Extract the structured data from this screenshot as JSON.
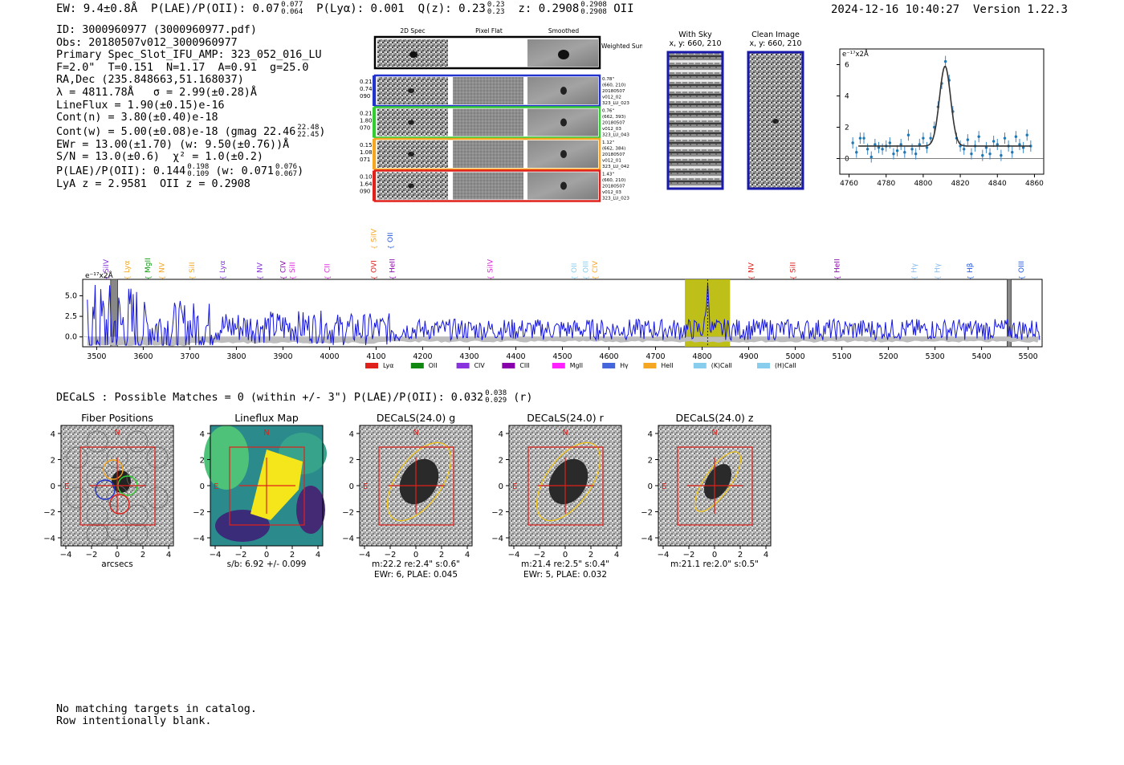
{
  "header": {
    "ew": "EW: 9.4±0.8Å",
    "plae_label": "P(LAE)/P(OII): 0.07",
    "plae_hi": "0.077",
    "plae_lo": "0.064",
    "plya": "P(Lyα): 0.001",
    "qz_label": "Q(z): 0.23",
    "qz_hi": "0.23",
    "qz_lo": "0.23",
    "z_label": "z: 0.2908",
    "z_hi": "0.2908",
    "z_lo": "0.2908",
    "z_line": "OII",
    "datetime": "2024-12-16 10:40:27",
    "version": "Version 1.22.3"
  },
  "info": {
    "id": "ID: 3000960977 (3000960977.pdf)",
    "obs": "Obs: 20180507v012_3000960977",
    "primary": "Primary Spec_Slot_IFU_AMP: 323_052_016_LU",
    "fit": "F=2.0\"  T=0.151  N=1.17  A=0.91  g=25.0",
    "radec": "RA,Dec (235.848663,51.168037)",
    "lambda": "λ = 4811.78Å   σ = 2.99(±0.28)Å",
    "lineflux": "LineFlux = 1.90(±0.15)e-16",
    "contn": "Cont(n) = 3.80(±0.40)e-18",
    "contw": "Cont(w) = 5.00(±0.08)e-18 (gmag 22.46",
    "contw_hi": "22.48",
    "contw_lo": "22.45",
    "ewr": "EWr = 13.00(±1.70) (w: 9.50(±0.76))Å",
    "sn": "S/N = 13.0(±0.6)  χ² = 1.0(±0.2)",
    "plae": "P(LAE)/P(OII): 0.144",
    "plae_hi": "0.198",
    "plae_lo": "0.109",
    "plae_w": "(w: 0.071",
    "plae_w_hi": "0.076",
    "plae_w_lo": "0.067",
    "lyaz": "LyA z = 2.9581  OII z = 0.2908"
  },
  "cutouts": {
    "col_titles": [
      "2D Spec",
      "Pixel Flat",
      "Smoothed"
    ],
    "weighted_label": "Weighted Sum",
    "rows": [
      {
        "left": [
          "0.21",
          "0.74",
          "090"
        ],
        "right": [
          "0.78\"",
          "(660, 210)",
          "20180507",
          "v012_02",
          "323_LU_023"
        ],
        "color": "#2233cc"
      },
      {
        "left": [
          "0.21",
          "1.80",
          "070"
        ],
        "right": [
          "0.76\"",
          "(662, 393)",
          "20180507",
          "v012_03",
          "323_LU_043"
        ],
        "color": "#33cc33"
      },
      {
        "left": [
          "0.15",
          "1.08",
          "071"
        ],
        "right": [
          "1.12\"",
          "(662, 384)",
          "20180507",
          "v012_01",
          "323_LU_042"
        ],
        "color": "#f5a623"
      },
      {
        "left": [
          "0.10",
          "1.64",
          "090"
        ],
        "right": [
          "1.43\"",
          "(660, 210)",
          "20180507",
          "v012_03",
          "323_LU_023"
        ],
        "color": "#e0201b"
      }
    ]
  },
  "sky": {
    "with_sky_title": "With Sky",
    "with_sky_coord": "x, y: 660, 210",
    "clean_title": "Clean Image",
    "clean_coord": "x, y: 660, 210"
  },
  "inset_chart": {
    "unit_label": "e⁻¹⁷x2Å",
    "x_ticks": [
      "4760",
      "4780",
      "4800",
      "4820",
      "4840",
      "4860"
    ],
    "y_ticks": [
      "0",
      "2",
      "4",
      "6"
    ]
  },
  "spectrum": {
    "unit_label": "e⁻¹⁷x2Å",
    "x_ticks": [
      "3500",
      "3600",
      "3700",
      "3800",
      "3900",
      "4000",
      "4100",
      "4200",
      "4300",
      "4400",
      "4500",
      "4600",
      "4700",
      "4800",
      "4900",
      "5000",
      "5100",
      "5200",
      "5300",
      "5400",
      "5500"
    ],
    "y_ticks": [
      "5.0",
      "2.5",
      "0.0"
    ],
    "line_labels": [
      {
        "text": "SiIV",
        "x": 3525,
        "color": "#8833dd"
      },
      {
        "text": "Lyα",
        "x": 3570,
        "color": "#f5a623"
      },
      {
        "text": "MgII",
        "x": 3615,
        "color": "#119911"
      },
      {
        "text": "NV",
        "x": 3645,
        "color": "#f5a623"
      },
      {
        "text": "SiII",
        "x": 3710,
        "color": "#f5a623"
      },
      {
        "text": "Lyα",
        "x": 3775,
        "color": "#8833dd"
      },
      {
        "text": "NV",
        "x": 3855,
        "color": "#8833dd"
      },
      {
        "text": "CIV",
        "x": 3905,
        "color": "#8800aa"
      },
      {
        "text": "SiII",
        "x": 3925,
        "color": "#dd22dd"
      },
      {
        "text": "CII",
        "x": 4000,
        "color": "#dd22dd"
      },
      {
        "text": "OVI",
        "x": 4100,
        "color": "#e0201b"
      },
      {
        "text": "HeII",
        "x": 4140,
        "color": "#8800aa"
      },
      {
        "text": "SiIV",
        "x": 4100,
        "color": "#f5a623",
        "high": true
      },
      {
        "text": "OII",
        "x": 4135,
        "color": "#2255dd",
        "high": true
      },
      {
        "text": "SiIV",
        "x": 4350,
        "color": "#dd22dd"
      },
      {
        "text": "OII",
        "x": 4530,
        "color": "#88ccee"
      },
      {
        "text": "OIII",
        "x": 4555,
        "color": "#88ccee"
      },
      {
        "text": "CIV",
        "x": 4575,
        "color": "#f5a623"
      },
      {
        "text": "NV",
        "x": 4910,
        "color": "#e0201b"
      },
      {
        "text": "SiII",
        "x": 5000,
        "color": "#e0201b"
      },
      {
        "text": "HeII",
        "x": 5095,
        "color": "#8800aa"
      },
      {
        "text": "Hγ",
        "x": 5260,
        "color": "#88bbee"
      },
      {
        "text": "Hγ",
        "x": 5310,
        "color": "#88bbee"
      },
      {
        "text": "Hβ",
        "x": 5380,
        "color": "#2255dd"
      },
      {
        "text": "OIII",
        "x": 5490,
        "color": "#2255dd"
      }
    ],
    "legend": [
      {
        "label": "Lyα",
        "color": "#e0201b"
      },
      {
        "label": "OII",
        "color": "#118811"
      },
      {
        "label": "CIV",
        "color": "#8833dd"
      },
      {
        "label": "CIII",
        "color": "#8800aa"
      },
      {
        "label": "MgII",
        "color": "#ff22ff"
      },
      {
        "label": "Hγ",
        "color": "#4466dd"
      },
      {
        "label": "HeII",
        "color": "#f5a623"
      },
      {
        "label": "(K)CaII",
        "color": "#88ccee"
      },
      {
        "label": "(H)CaII",
        "color": "#88ccee"
      }
    ]
  },
  "decals": {
    "summary": "DECaLS : Possible Matches = 0 (within +/- 3\")  P(LAE)/P(OII): 0.032",
    "summary_hi": "0.038",
    "summary_lo": "0.029",
    "summary_band": "(r)",
    "panels": [
      {
        "title": "Fiber Positions",
        "cap1": "arcsecs",
        "cap2": "",
        "cap3": ""
      },
      {
        "title": "Lineflux Map",
        "cap1": "s/b: 6.92 +/- 0.099",
        "cap2": "",
        "cap3": ""
      },
      {
        "title": "DECaLS(24.0) g",
        "cap1": "m:22.2  re:2.4\"  s:0.6\"",
        "cap2": "EWr: 6, PLAE: 0.045",
        "cap3": ""
      },
      {
        "title": "DECaLS(24.0) r",
        "cap1": "m:21.4  re:2.5\"  s:0.4\"",
        "cap2": "EWr: 5, PLAE: 0.032",
        "cap3": ""
      },
      {
        "title": "DECaLS(24.0) z",
        "cap1": "m:21.1  re:2.0\"  s:0.5\"",
        "cap2": "",
        "cap3": ""
      }
    ],
    "axis_ticks_x": [
      "−4",
      "−2",
      "0",
      "2",
      "4"
    ],
    "axis_ticks_y": [
      "4",
      "2",
      "0",
      "−2",
      "−4"
    ],
    "north": "N",
    "east": "E"
  },
  "footer": {
    "line1": "No matching targets in catalog.",
    "line2": "Row intentionally blank."
  },
  "chart_data": [
    {
      "type": "scatter",
      "title": "",
      "xlabel": "",
      "ylabel": "e⁻¹⁷x2Å",
      "xlim": [
        4755,
        4865
      ],
      "ylim": [
        -1,
        7
      ],
      "x": [
        4762,
        4764,
        4766,
        4768,
        4770,
        4772,
        4774,
        4776,
        4778,
        4780,
        4782,
        4784,
        4786,
        4788,
        4790,
        4792,
        4794,
        4796,
        4798,
        4800,
        4802,
        4804,
        4806,
        4808,
        4810,
        4812,
        4814,
        4816,
        4818,
        4820,
        4822,
        4824,
        4826,
        4828,
        4830,
        4832,
        4834,
        4836,
        4838,
        4840,
        4842,
        4844,
        4846,
        4848,
        4850,
        4852,
        4854,
        4856,
        4858
      ],
      "y": [
        1.0,
        0.4,
        1.3,
        1.3,
        0.6,
        0.1,
        0.9,
        0.7,
        0.6,
        0.8,
        1.0,
        0.3,
        0.5,
        0.9,
        0.4,
        1.5,
        0.6,
        0.3,
        0.9,
        1.3,
        0.7,
        1.3,
        2.0,
        3.3,
        4.8,
        6.2,
        5.0,
        3.0,
        1.3,
        0.8,
        0.6,
        1.2,
        0.3,
        0.8,
        1.4,
        0.2,
        0.7,
        0.3,
        1.1,
        0.9,
        0.2,
        1.3,
        0.8,
        0.4,
        1.4,
        0.9,
        0.7,
        1.5,
        0.8
      ],
      "fit": {
        "center": 4811.78,
        "sigma": 2.99,
        "amplitude": 5.1,
        "continuum": 0.8
      }
    },
    {
      "type": "line",
      "title": "",
      "xlabel": "",
      "ylabel": "e⁻¹⁷x2Å",
      "xlim": [
        3470,
        5530
      ],
      "ylim": [
        -1.2,
        7.0
      ],
      "highlight_range": [
        4763,
        4860
      ],
      "line_center": 4811.78,
      "masked_ranges": [
        [
          3530,
          3545
        ],
        [
          5455,
          5462
        ]
      ]
    }
  ]
}
